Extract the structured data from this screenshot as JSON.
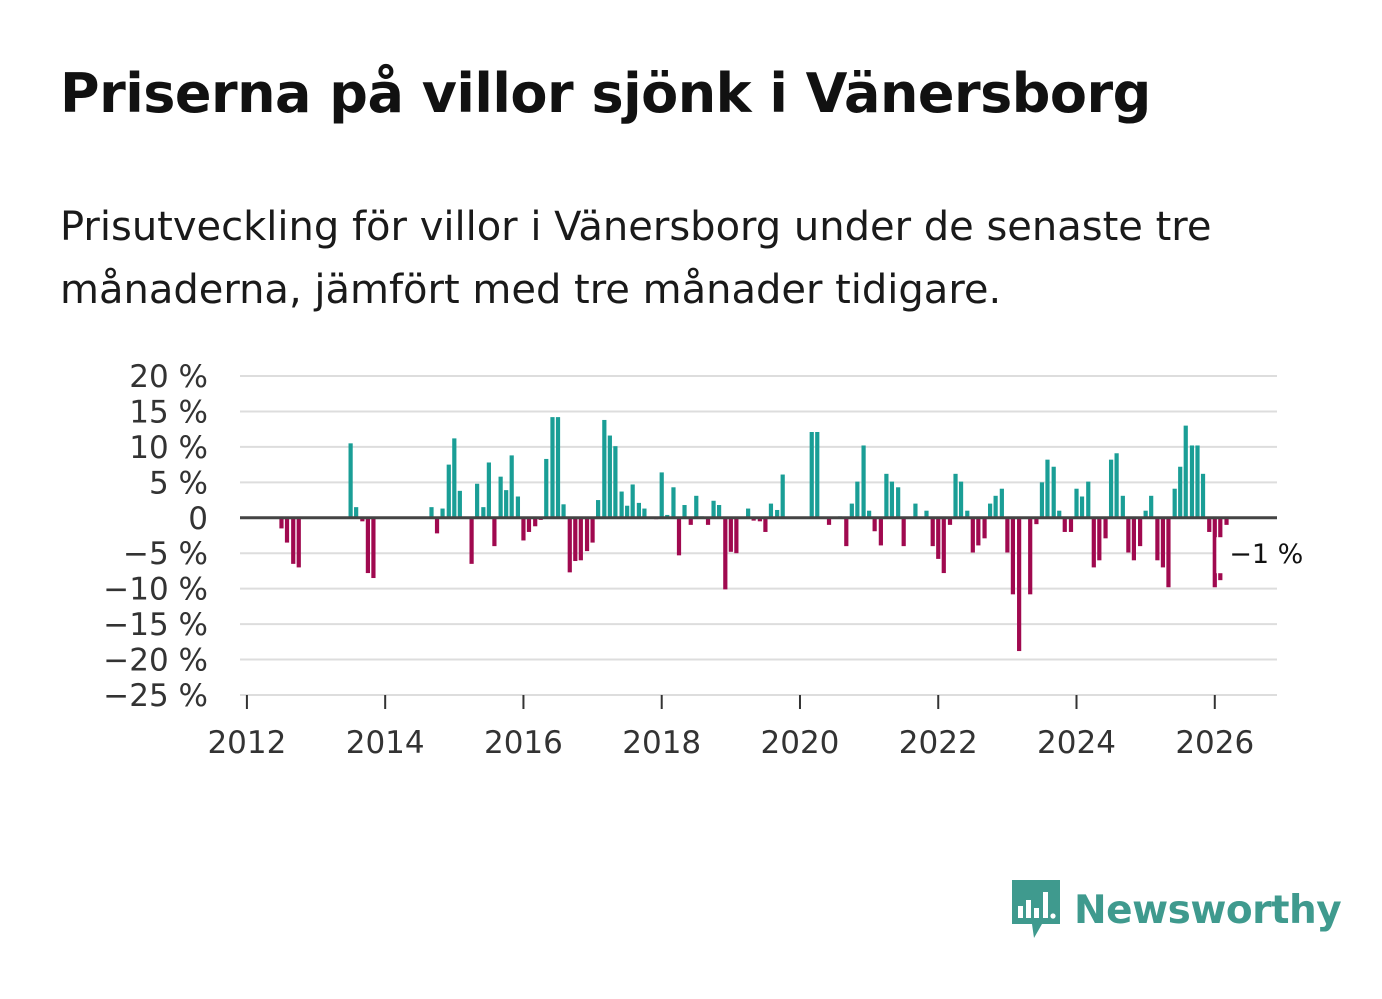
{
  "title": "Priserna på villor sjönk i Vänersborg",
  "subtitle": "Prisutveckling för villor i Vänersborg under de senaste tre månaderna, jämfört med tre månader tidigare.",
  "brand": "Newsworthy",
  "colors": {
    "positive": "#1a9e96",
    "negative": "#a0094f",
    "grid": "#dddddd",
    "zero_line": "#444444",
    "brand": "#3f9a8e"
  },
  "chart_data": {
    "type": "bar",
    "title": "Priserna på villor sjönk i Vänersborg",
    "xlabel": "",
    "ylabel": "",
    "unit": "%",
    "ylim": [
      -25,
      20
    ],
    "yticks": [
      20,
      15,
      10,
      5,
      0,
      -5,
      -10,
      -15,
      -20,
      -25
    ],
    "ytick_labels": [
      "20 %",
      "15 %",
      "10 %",
      "5 %",
      "0",
      "−5 %",
      "−10 %",
      "−15 %",
      "−20 %",
      "−25 %"
    ],
    "xlim": [
      2011.9,
      2026.9
    ],
    "xticks": [
      2012,
      2014,
      2016,
      2018,
      2020,
      2022,
      2024,
      2026
    ],
    "xtick_labels": [
      "2012",
      "2014",
      "2016",
      "2018",
      "2020",
      "2022",
      "2024",
      "2026"
    ],
    "grid": true,
    "annotation": {
      "x": 2026.08,
      "y": -1,
      "label": "−1 %"
    },
    "x": [
      2012.5,
      2012.58,
      2012.67,
      2012.75,
      2013.5,
      2013.58,
      2013.67,
      2013.75,
      2013.83,
      2014.67,
      2014.75,
      2014.83,
      2014.92,
      2015,
      2015.08,
      2015.25,
      2015.33,
      2015.42,
      2015.5,
      2015.58,
      2015.67,
      2015.75,
      2015.83,
      2015.92,
      2016,
      2016.08,
      2016.17,
      2016.25,
      2016.33,
      2016.42,
      2016.5,
      2016.58,
      2016.67,
      2016.75,
      2016.83,
      2016.92,
      2017,
      2017.08,
      2017.17,
      2017.25,
      2017.33,
      2017.42,
      2017.5,
      2017.58,
      2017.67,
      2017.75,
      2017.92,
      2018,
      2018.08,
      2018.17,
      2018.25,
      2018.33,
      2018.42,
      2018.5,
      2018.58,
      2018.67,
      2018.75,
      2018.83,
      2018.92,
      2019,
      2019.08,
      2019.25,
      2019.33,
      2019.42,
      2019.5,
      2019.58,
      2019.67,
      2019.75,
      2020.17,
      2020.25,
      2020.42,
      2020.58,
      2020.67,
      2020.75,
      2020.83,
      2020.92,
      2021,
      2021.08,
      2021.17,
      2021.25,
      2021.33,
      2021.42,
      2021.5,
      2021.67,
      2021.75,
      2021.83,
      2021.92,
      2022,
      2022.08,
      2022.17,
      2022.25,
      2022.33,
      2022.42,
      2022.5,
      2022.58,
      2022.67,
      2022.75,
      2022.83,
      2022.92,
      2023,
      2023.08,
      2023.17,
      2023.33,
      2023.42,
      2023.5,
      2023.58,
      2023.67,
      2023.75,
      2023.83,
      2023.92,
      2024,
      2024.08,
      2024.17,
      2024.25,
      2024.33,
      2024.42,
      2024.5,
      2024.58,
      2024.67,
      2024.75,
      2024.83,
      2024.92,
      2025,
      2025.08,
      2025.17,
      2025.25,
      2025.33,
      2025.42,
      2025.5,
      2025.58,
      2025.67,
      2025.75,
      2025.83,
      2025.92,
      2026,
      2026.08,
      2026.17
    ],
    "values": [
      -1.5,
      -3.5,
      -6.5,
      -7,
      10.5,
      1.5,
      -0.5,
      -7.8,
      -8.5,
      1.5,
      -2.2,
      1.3,
      7.5,
      11.2,
      3.8,
      -6.5,
      4.8,
      1.5,
      7.8,
      -4,
      5.8,
      3.9,
      8.8,
      3,
      -3.2,
      -2,
      -1.2,
      -0.3,
      8.3,
      14.2,
      14.2,
      1.9,
      -7.7,
      -6.1,
      -6,
      -4.7,
      -3.5,
      2.5,
      13.8,
      11.6,
      10.1,
      3.7,
      1.7,
      4.7,
      2.1,
      1.3,
      -0.2,
      6.4,
      0.4,
      4.3,
      -5.3,
      1.8,
      -1,
      3.1,
      0.2,
      -1,
      2.4,
      1.8,
      -10.1,
      -4.8,
      -5,
      1.3,
      -0.4,
      -0.5,
      -2,
      2,
      1.1,
      6.1,
      12.1,
      12.1,
      -1,
      0.2,
      -4,
      2,
      5.1,
      10.2,
      1,
      -1.9,
      -3.9,
      6.2,
      5.1,
      4.3,
      -4,
      2,
      0.1,
      1,
      -4,
      -5.8,
      -7.8,
      -1,
      6.2,
      5.1,
      1,
      -4.9,
      -3.9,
      -2.9,
      2,
      3.1,
      4.1,
      -4.9,
      -10.8,
      -18.8,
      -10.8,
      -0.9,
      5,
      8.2,
      7.2,
      1,
      -2,
      -2,
      4.1,
      3,
      5.1,
      -7,
      -6,
      -2.9,
      8.2,
      9.1,
      3.1,
      -4.9,
      -6,
      -4,
      1,
      3.1,
      -6,
      -7,
      -9.8,
      4.1,
      7.2,
      13,
      10.2,
      10.2,
      6.2,
      -2,
      -9.8,
      -8.8,
      -1
    ]
  }
}
